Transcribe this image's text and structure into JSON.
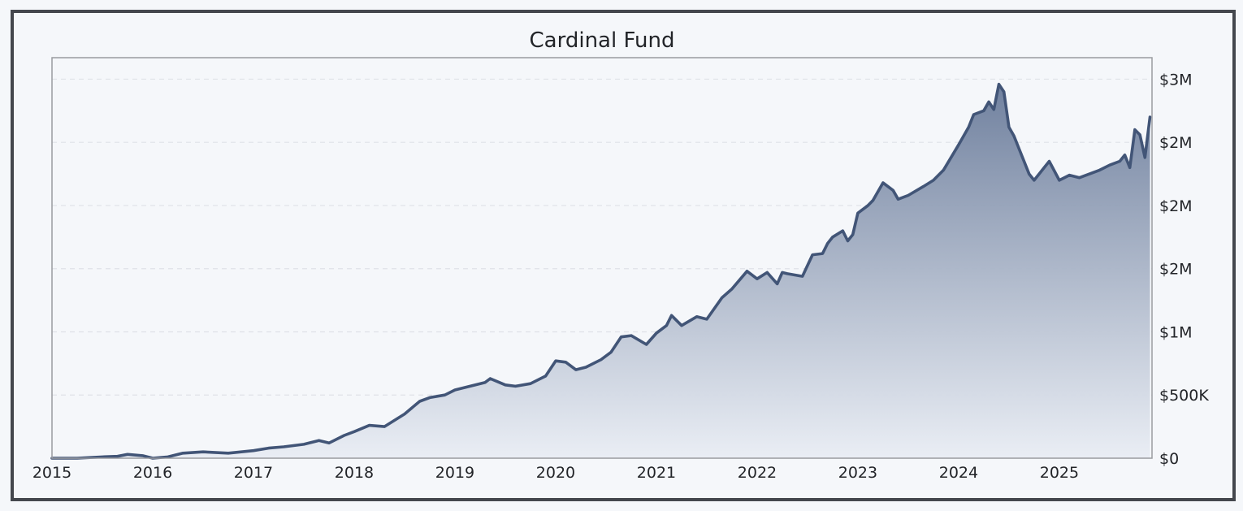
{
  "chart_data": {
    "type": "area",
    "title": "Cardinal Fund",
    "xlabel": "",
    "ylabel": "",
    "x_range": [
      2015.0,
      2025.92
    ],
    "ylim": [
      0,
      3170000
    ],
    "y_axis_side": "right",
    "grid": "horizontal dashed",
    "x_ticks": [
      {
        "value": 2015,
        "label": "2015"
      },
      {
        "value": 2016,
        "label": "2016"
      },
      {
        "value": 2017,
        "label": "2017"
      },
      {
        "value": 2018,
        "label": "2018"
      },
      {
        "value": 2019,
        "label": "2019"
      },
      {
        "value": 2020,
        "label": "2020"
      },
      {
        "value": 2021,
        "label": "2021"
      },
      {
        "value": 2022,
        "label": "2022"
      },
      {
        "value": 2023,
        "label": "2023"
      },
      {
        "value": 2024,
        "label": "2024"
      },
      {
        "value": 2025,
        "label": "2025"
      }
    ],
    "y_ticks": [
      {
        "value": 0,
        "label": "$0"
      },
      {
        "value": 500000,
        "label": "$500K"
      },
      {
        "value": 1000000,
        "label": "$1M"
      },
      {
        "value": 1500000,
        "label": "$2M"
      },
      {
        "value": 2000000,
        "label": "$2M"
      },
      {
        "value": 2500000,
        "label": "$2M"
      },
      {
        "value": 3000000,
        "label": "$3M"
      }
    ],
    "series": [
      {
        "name": "Cardinal Fund",
        "color": "#425577",
        "x": [
          2015.0,
          2015.1,
          2015.25,
          2015.5,
          2015.65,
          2015.75,
          2015.9,
          2016.0,
          2016.15,
          2016.3,
          2016.5,
          2016.75,
          2017.0,
          2017.15,
          2017.3,
          2017.5,
          2017.65,
          2017.75,
          2017.9,
          2018.0,
          2018.15,
          2018.3,
          2018.5,
          2018.65,
          2018.75,
          2018.9,
          2019.0,
          2019.15,
          2019.3,
          2019.35,
          2019.5,
          2019.6,
          2019.75,
          2019.9,
          2020.0,
          2020.1,
          2020.2,
          2020.3,
          2020.45,
          2020.55,
          2020.65,
          2020.75,
          2020.9,
          2021.0,
          2021.1,
          2021.15,
          2021.25,
          2021.4,
          2021.5,
          2021.65,
          2021.75,
          2021.9,
          2022.0,
          2022.1,
          2022.2,
          2022.25,
          2022.3,
          2022.45,
          2022.55,
          2022.65,
          2022.7,
          2022.75,
          2022.85,
          2022.9,
          2022.95,
          2023.0,
          2023.1,
          2023.15,
          2023.25,
          2023.35,
          2023.4,
          2023.5,
          2023.65,
          2023.75,
          2023.85,
          2024.0,
          2024.1,
          2024.15,
          2024.25,
          2024.3,
          2024.35,
          2024.4,
          2024.45,
          2024.5,
          2024.55,
          2024.6,
          2024.7,
          2024.75,
          2024.85,
          2024.9,
          2025.0,
          2025.1,
          2025.2,
          2025.3,
          2025.4,
          2025.5,
          2025.6,
          2025.65,
          2025.7,
          2025.75,
          2025.8,
          2025.85,
          2025.9
        ],
        "values": [
          0,
          0,
          0,
          10000,
          15000,
          30000,
          20000,
          0,
          10000,
          40000,
          50000,
          40000,
          60000,
          80000,
          90000,
          110000,
          140000,
          120000,
          180000,
          210000,
          260000,
          250000,
          350000,
          450000,
          480000,
          500000,
          540000,
          570000,
          600000,
          630000,
          580000,
          570000,
          590000,
          650000,
          770000,
          760000,
          700000,
          720000,
          780000,
          840000,
          960000,
          970000,
          900000,
          990000,
          1050000,
          1130000,
          1050000,
          1120000,
          1100000,
          1270000,
          1340000,
          1480000,
          1420000,
          1470000,
          1380000,
          1470000,
          1460000,
          1440000,
          1610000,
          1620000,
          1700000,
          1750000,
          1800000,
          1720000,
          1770000,
          1940000,
          2000000,
          2040000,
          2180000,
          2120000,
          2050000,
          2080000,
          2150000,
          2200000,
          2280000,
          2480000,
          2620000,
          2720000,
          2750000,
          2820000,
          2760000,
          2960000,
          2900000,
          2620000,
          2550000,
          2450000,
          2250000,
          2200000,
          2300000,
          2350000,
          2200000,
          2240000,
          2220000,
          2250000,
          2280000,
          2320000,
          2350000,
          2400000,
          2300000,
          2600000,
          2560000,
          2380000,
          2700000
        ]
      }
    ]
  }
}
